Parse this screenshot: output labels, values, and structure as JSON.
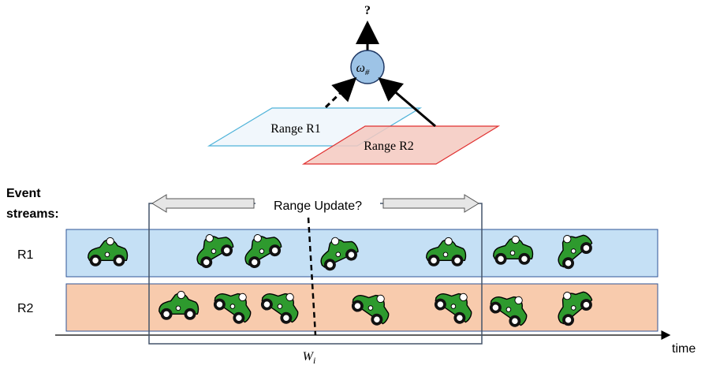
{
  "operator": {
    "output": "?",
    "symbol": "ω",
    "subscript": "#"
  },
  "ranges": [
    {
      "label": "Range R1"
    },
    {
      "label": "Range R2"
    }
  ],
  "streams_header": [
    "Event",
    "streams:"
  ],
  "streams": [
    {
      "label": "R1"
    },
    {
      "label": "R2"
    }
  ],
  "window": {
    "caption": "Range Update?",
    "symbol": "W",
    "subscript": "i"
  },
  "axis": {
    "label": "time"
  }
}
